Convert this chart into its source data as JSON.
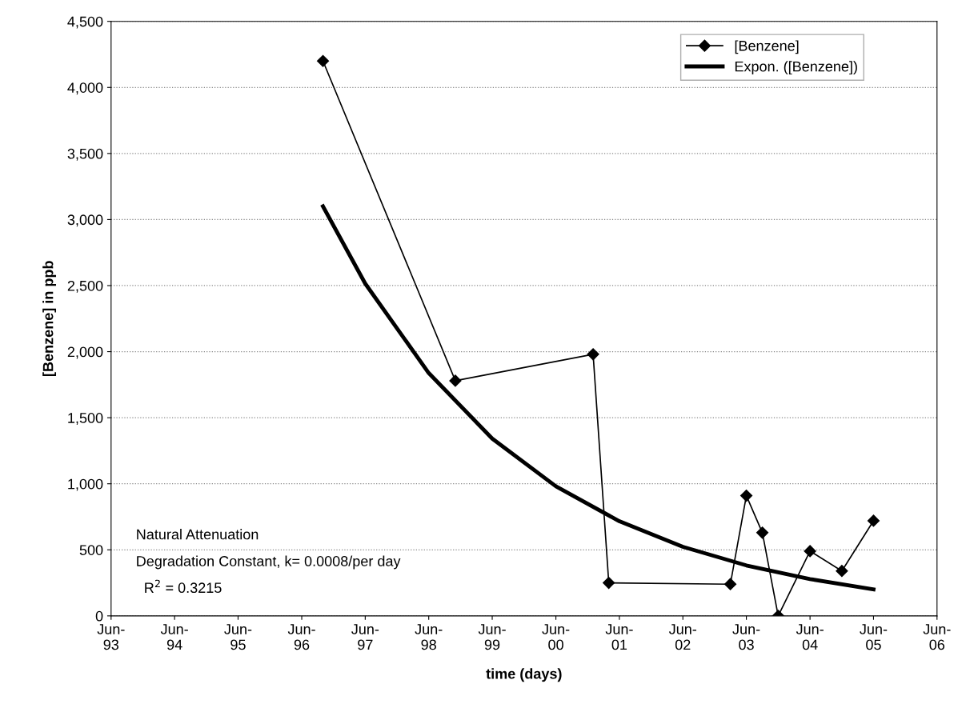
{
  "chart_data": {
    "type": "line",
    "xlabel": "time (days)",
    "ylabel": "[Benzene] in ppb",
    "series": [
      {
        "name": "[Benzene]",
        "color": "#000000",
        "marker": "diamond",
        "x": [
          "1996-10",
          "1998-11",
          "2001-01",
          "2001-04",
          "2003-03",
          "2003-06",
          "2003-09",
          "2003-12",
          "2004-06",
          "2004-12",
          "2005-06"
        ],
        "values": [
          4200,
          1780,
          1980,
          250,
          240,
          910,
          630,
          0,
          490,
          340,
          720
        ]
      },
      {
        "name": "Expon. ([Benzene])",
        "color": "#000000",
        "marker": "none",
        "x": [
          "1996-10",
          "1997-06",
          "1998-06",
          "1999-06",
          "2000-06",
          "2001-06",
          "2002-06",
          "2003-06",
          "2004-06",
          "2005-06"
        ],
        "values": [
          3100,
          2515,
          1838,
          1342,
          981,
          716,
          523,
          382,
          279,
          200
        ]
      }
    ],
    "xlim": [
      "1993-06",
      "2006-06"
    ],
    "xticks": [
      {
        "value": "1993-06",
        "label": "Jun-\n93"
      },
      {
        "value": "1994-06",
        "label": "Jun-\n94"
      },
      {
        "value": "1995-06",
        "label": "Jun-\n95"
      },
      {
        "value": "1996-06",
        "label": "Jun-\n96"
      },
      {
        "value": "1997-06",
        "label": "Jun-\n97"
      },
      {
        "value": "1998-06",
        "label": "Jun-\n98"
      },
      {
        "value": "1999-06",
        "label": "Jun-\n99"
      },
      {
        "value": "2000-06",
        "label": "Jun-\n00"
      },
      {
        "value": "2001-06",
        "label": "Jun-\n01"
      },
      {
        "value": "2002-06",
        "label": "Jun-\n02"
      },
      {
        "value": "2003-06",
        "label": "Jun-\n03"
      },
      {
        "value": "2004-06",
        "label": "Jun-\n04"
      },
      {
        "value": "2005-06",
        "label": "Jun-\n05"
      },
      {
        "value": "2006-06",
        "label": "Jun-\n06"
      }
    ],
    "ylim": [
      0,
      4500
    ],
    "yticks": [
      {
        "value": 0,
        "label": "0"
      },
      {
        "value": 500,
        "label": "500"
      },
      {
        "value": 1000,
        "label": "1,000"
      },
      {
        "value": 1500,
        "label": "1,500"
      },
      {
        "value": 2000,
        "label": "2,000"
      },
      {
        "value": 2500,
        "label": "2,500"
      },
      {
        "value": 3000,
        "label": "3,000"
      },
      {
        "value": 3500,
        "label": "3,500"
      },
      {
        "value": 4000,
        "label": "4,000"
      },
      {
        "value": 4500,
        "label": "4,500"
      }
    ],
    "grid": "y",
    "legend": "top right",
    "annotations": [
      "Natural Attenuation",
      "Degradation Constant, k= 0.0008/per day",
      "  R$^{2}$ = 0.3215"
    ]
  }
}
